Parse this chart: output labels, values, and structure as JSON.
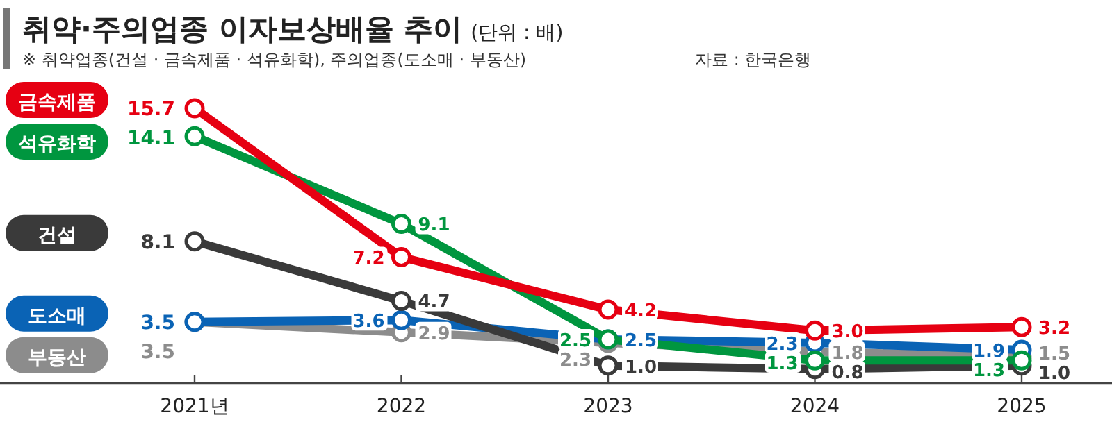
{
  "chart_data": {
    "type": "line",
    "title": "취약·주의업종 이자보상배율 추이",
    "subtitle": "※ 취약업종(건설 · 금속제품 · 석유화학), 주의업종(도소매 · 부동산)",
    "annotations": [
      "(단위 : 배)",
      "자료 : 한국은행"
    ],
    "categories": [
      "2021년",
      "2022",
      "2023",
      "2024",
      "2025"
    ],
    "series": [
      {
        "name": "부동산",
        "color": "#8c8c8c",
        "values": [
          3.5,
          2.9,
          2.3,
          1.8,
          1.5
        ],
        "value_labels": [
          "3.5",
          "2.9",
          "2.3",
          "1.8",
          "1.5"
        ]
      },
      {
        "name": "도소매",
        "color": "#0a63b5",
        "values": [
          3.5,
          3.6,
          2.5,
          2.3,
          1.9
        ],
        "value_labels": [
          "3.5",
          "3.6",
          "2.5",
          "2.3",
          "1.9"
        ]
      },
      {
        "name": "건설",
        "color": "#3a3a3a",
        "values": [
          8.1,
          4.7,
          1.0,
          0.8,
          1.0
        ],
        "value_labels": [
          "8.1",
          "4.7",
          "1.0",
          "0.8",
          "1.0"
        ]
      },
      {
        "name": "석유화학",
        "color": "#00963f",
        "values": [
          14.1,
          9.1,
          2.5,
          1.3,
          1.3
        ],
        "value_labels": [
          "14.1",
          "9.1",
          "2.5",
          "1.3",
          "1.3"
        ]
      },
      {
        "name": "금속제품",
        "color": "#e60012",
        "values": [
          15.7,
          7.2,
          4.2,
          3.0,
          3.2
        ],
        "value_labels": [
          "15.7",
          "7.2",
          "4.2",
          "3.0",
          "3.2"
        ]
      }
    ],
    "legend": "left",
    "marker": "circle",
    "line_style": "solid"
  }
}
